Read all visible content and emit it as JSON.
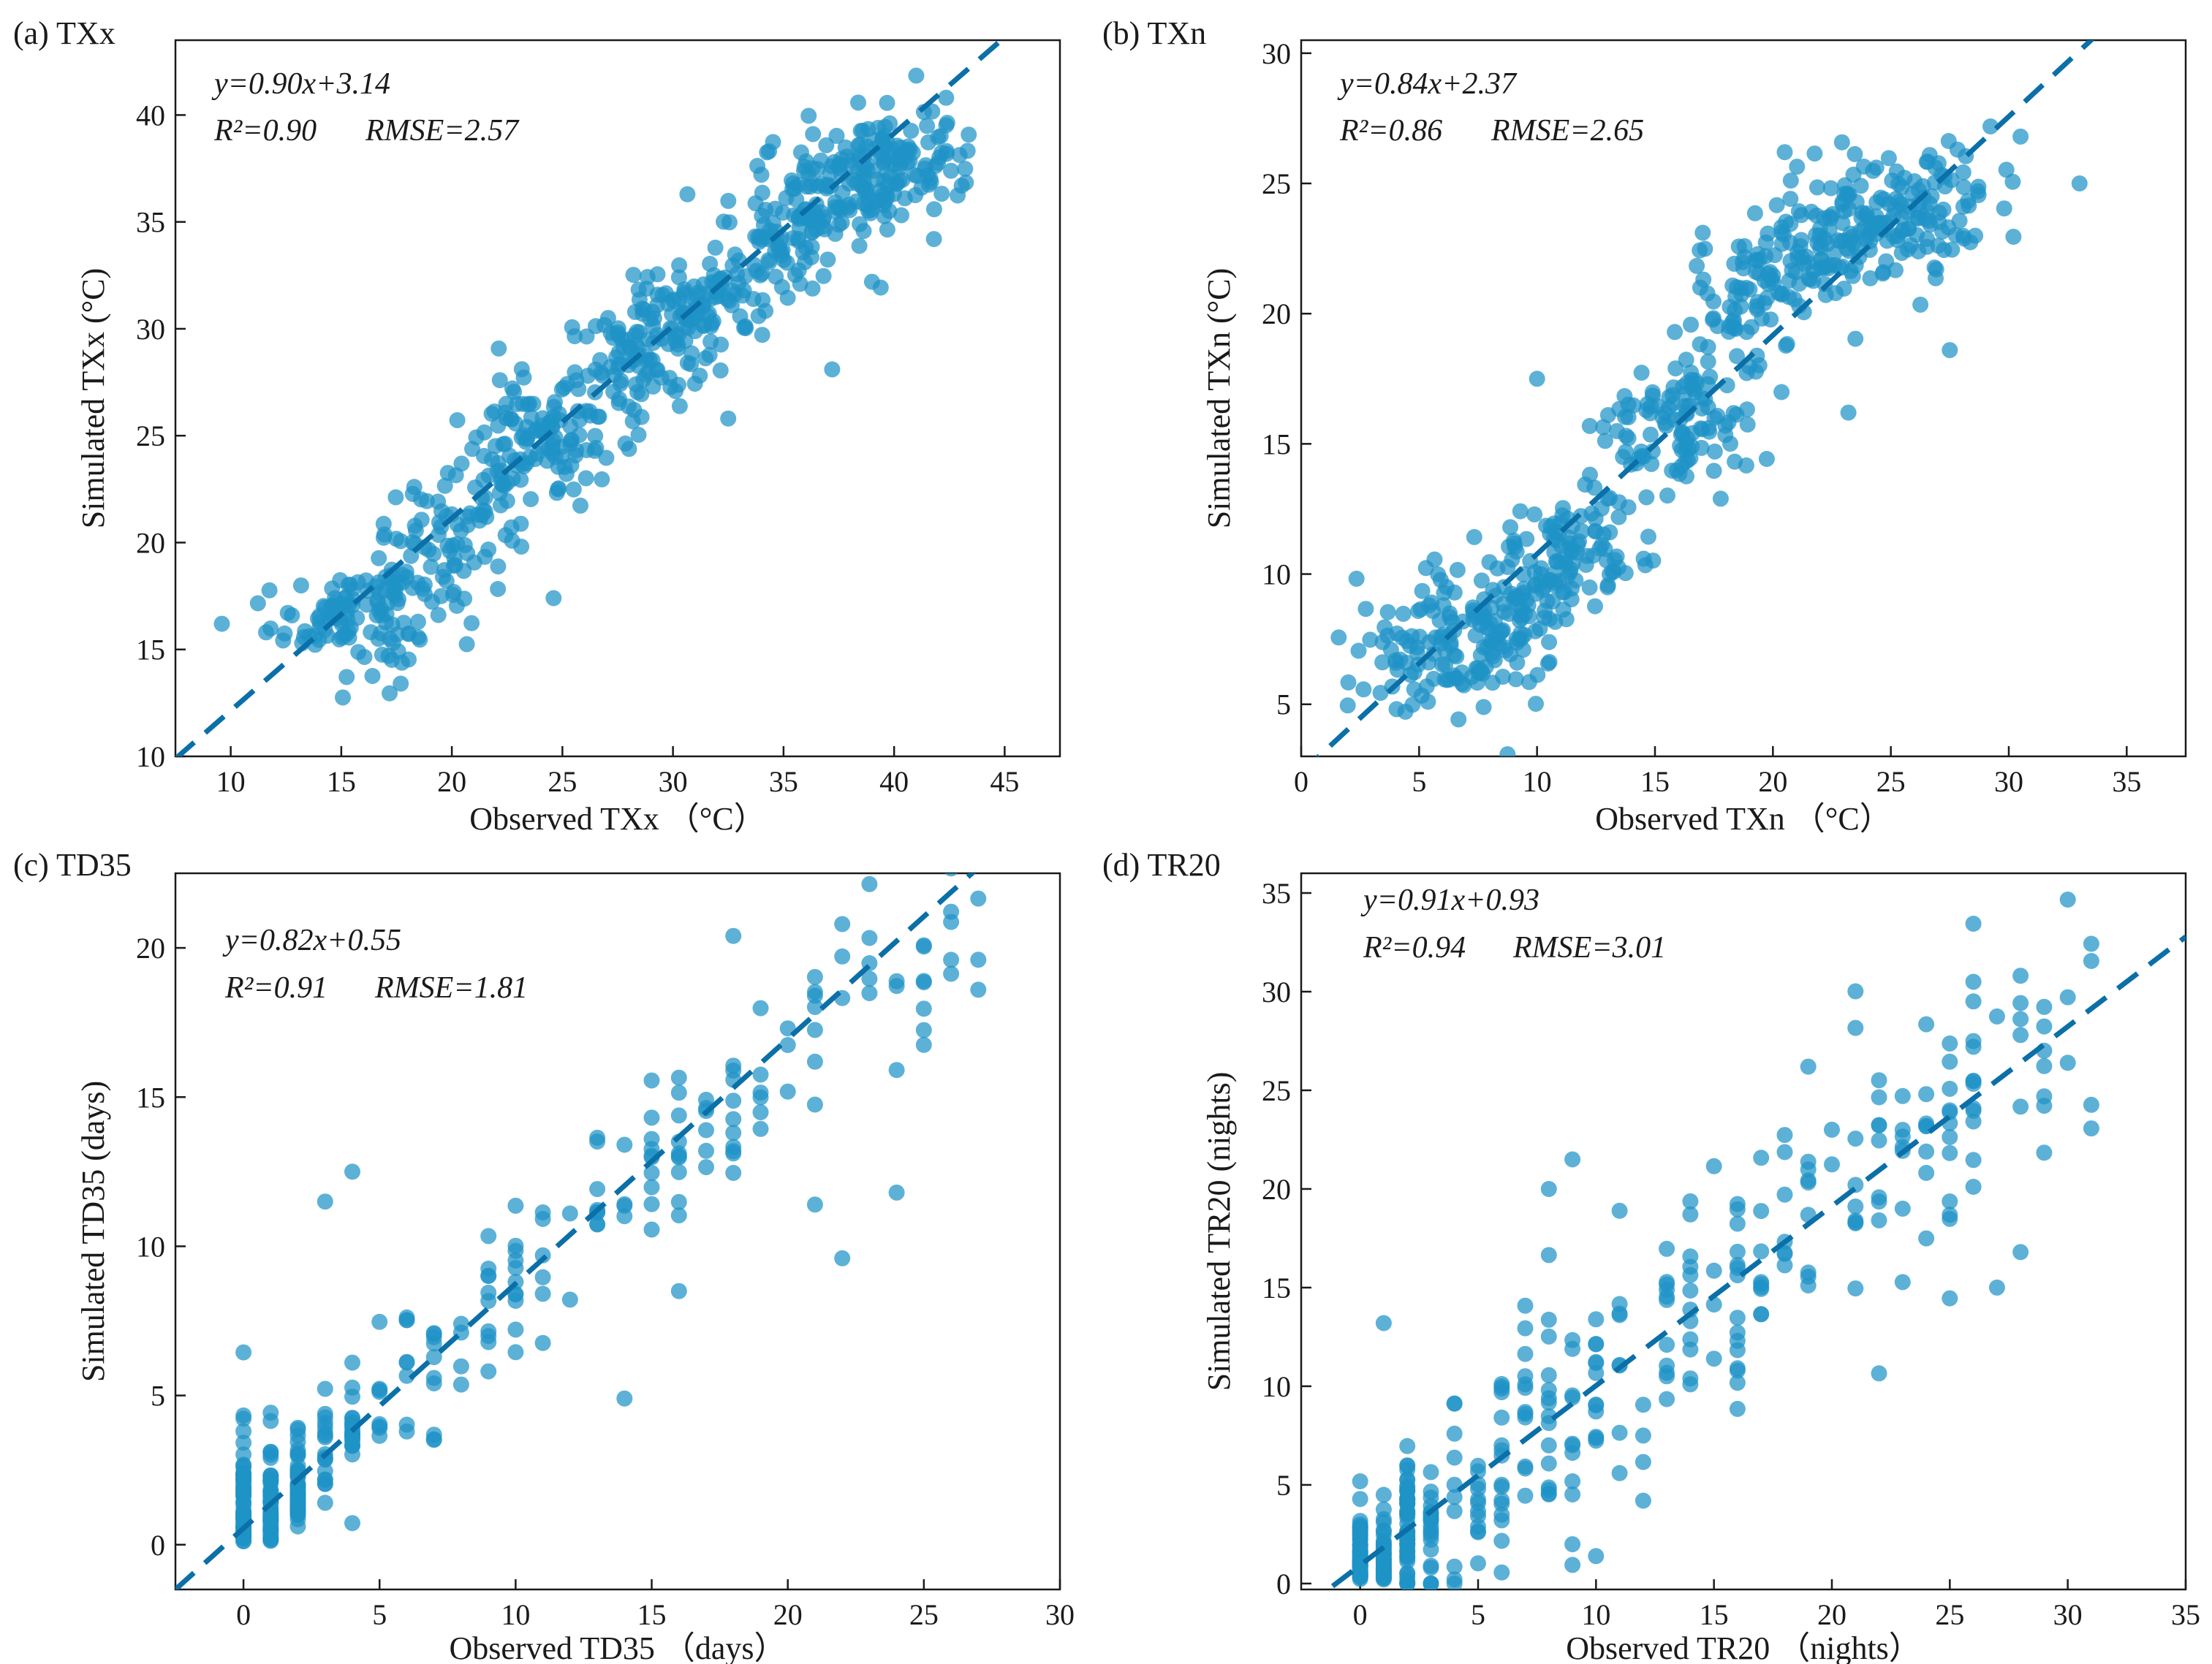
{
  "colors": {
    "points": "#1f93c6",
    "fit_line": "#0b6fa8",
    "frame": "#1a1a1a"
  },
  "chart_data": [
    {
      "type": "scatter",
      "panel": "(a) TXx",
      "xlabel": "Observed TXx （°C）",
      "ylabel": "Simulated TXx (°C)",
      "xlim": [
        7.5,
        47.5
      ],
      "ylim": [
        10,
        43.5
      ],
      "xticks": [
        10,
        15,
        20,
        25,
        30,
        35,
        40,
        45
      ],
      "yticks": [
        10,
        15,
        20,
        25,
        30,
        35,
        40
      ],
      "fit": {
        "slope": 0.9,
        "intercept": 3.14,
        "equation": "y=0.90x+3.14",
        "r2": "R²=0.90",
        "rmse": "RMSE=2.57"
      },
      "cluster_centers": [
        [
          15,
          16.4
        ],
        [
          17,
          17.3
        ],
        [
          20,
          20.3
        ],
        [
          23,
          23.8
        ],
        [
          25,
          25.6
        ],
        [
          28,
          28.1
        ],
        [
          30,
          29.9
        ],
        [
          32,
          31.9
        ],
        [
          35,
          34.6
        ],
        [
          37,
          36.4
        ],
        [
          39,
          37.3
        ],
        [
          41,
          37.8
        ]
      ],
      "n_points": 780,
      "spread": 1.5,
      "outliers": [
        [
          9.6,
          16.2
        ],
        [
          11.6,
          15.8
        ],
        [
          24.6,
          17.4
        ],
        [
          37.2,
          28.1
        ],
        [
          41.8,
          34.2
        ],
        [
          39.0,
          32.2
        ]
      ]
    },
    {
      "type": "scatter",
      "panel": "(b) TXn",
      "xlabel": "Observed TXn （°C）",
      "ylabel": "Simulated TXn (°C)",
      "xlim": [
        0,
        37.5
      ],
      "ylim": [
        3,
        30.5
      ],
      "xticks": [
        0,
        5,
        10,
        15,
        20,
        25,
        30,
        35
      ],
      "yticks": [
        5,
        10,
        15,
        20,
        25,
        30
      ],
      "fit": {
        "slope": 0.84,
        "intercept": 2.37,
        "equation": "y=0.84x+2.37",
        "r2": "R²=0.86",
        "rmse": "RMSE=2.65"
      },
      "cluster_centers": [
        [
          5,
          7.2
        ],
        [
          7,
          7.3
        ],
        [
          9,
          8.1
        ],
        [
          10,
          10.4
        ],
        [
          12,
          11.0
        ],
        [
          15,
          15.4
        ],
        [
          17,
          16.3
        ],
        [
          19,
          20.5
        ],
        [
          21,
          22.1
        ],
        [
          23,
          23.4
        ],
        [
          25,
          23.6
        ],
        [
          27,
          24.2
        ]
      ],
      "n_points": 690,
      "spread": 1.4,
      "outliers": [
        [
          33.0,
          25.0
        ],
        [
          30.5,
          26.8
        ],
        [
          27.5,
          18.6
        ],
        [
          23.2,
          16.2
        ],
        [
          20.5,
          26.2
        ],
        [
          10.0,
          17.5
        ]
      ]
    },
    {
      "type": "scatter",
      "panel": "(c) TD35",
      "xlabel": "Observed TD35 （days）",
      "ylabel": "Simulated TD35 (days)",
      "xlim": [
        -2.5,
        30
      ],
      "ylim": [
        -1.5,
        22.5
      ],
      "xticks": [
        0,
        5,
        10,
        15,
        20,
        25,
        30
      ],
      "yticks": [
        0,
        5,
        10,
        15,
        20
      ],
      "fit": {
        "slope": 0.82,
        "intercept": 0.55,
        "equation": "y=0.82x+0.55",
        "r2": "R²=0.91",
        "rmse": "RMSE=1.81"
      },
      "discrete_x": true,
      "max_x": 27,
      "n_points": 360,
      "spread": 1.6,
      "outliers": [
        [
          14,
          4.9
        ],
        [
          4,
          12.5
        ],
        [
          24,
          11.8
        ],
        [
          22,
          9.6
        ],
        [
          21,
          11.4
        ],
        [
          27,
          18.6
        ],
        [
          26,
          19.6
        ],
        [
          16,
          8.5
        ],
        [
          3,
          11.5
        ]
      ]
    },
    {
      "type": "scatter",
      "panel": "(d) TR20",
      "xlabel": "Observed TR20 （nights）",
      "ylabel": "Simulated TR20 (nights)",
      "xlim": [
        -2.5,
        35
      ],
      "ylim": [
        -0.3,
        36
      ],
      "xticks": [
        0,
        5,
        10,
        15,
        20,
        25,
        30,
        35
      ],
      "yticks": [
        0,
        5,
        10,
        15,
        20,
        25,
        30,
        35
      ],
      "fit": {
        "slope": 0.91,
        "intercept": 0.93,
        "equation": "y=0.91x+0.93",
        "r2": "R²=0.94",
        "rmse": "RMSE=3.01"
      },
      "discrete_x": true,
      "max_x": 31,
      "n_points": 430,
      "spread": 3.6,
      "outliers": [
        [
          1,
          13.2
        ],
        [
          8,
          20.0
        ],
        [
          9,
          21.5
        ],
        [
          12,
          4.2
        ],
        [
          27,
          15.0
        ],
        [
          28,
          16.8
        ],
        [
          26,
          30.5
        ],
        [
          19,
          26.2
        ]
      ]
    }
  ]
}
